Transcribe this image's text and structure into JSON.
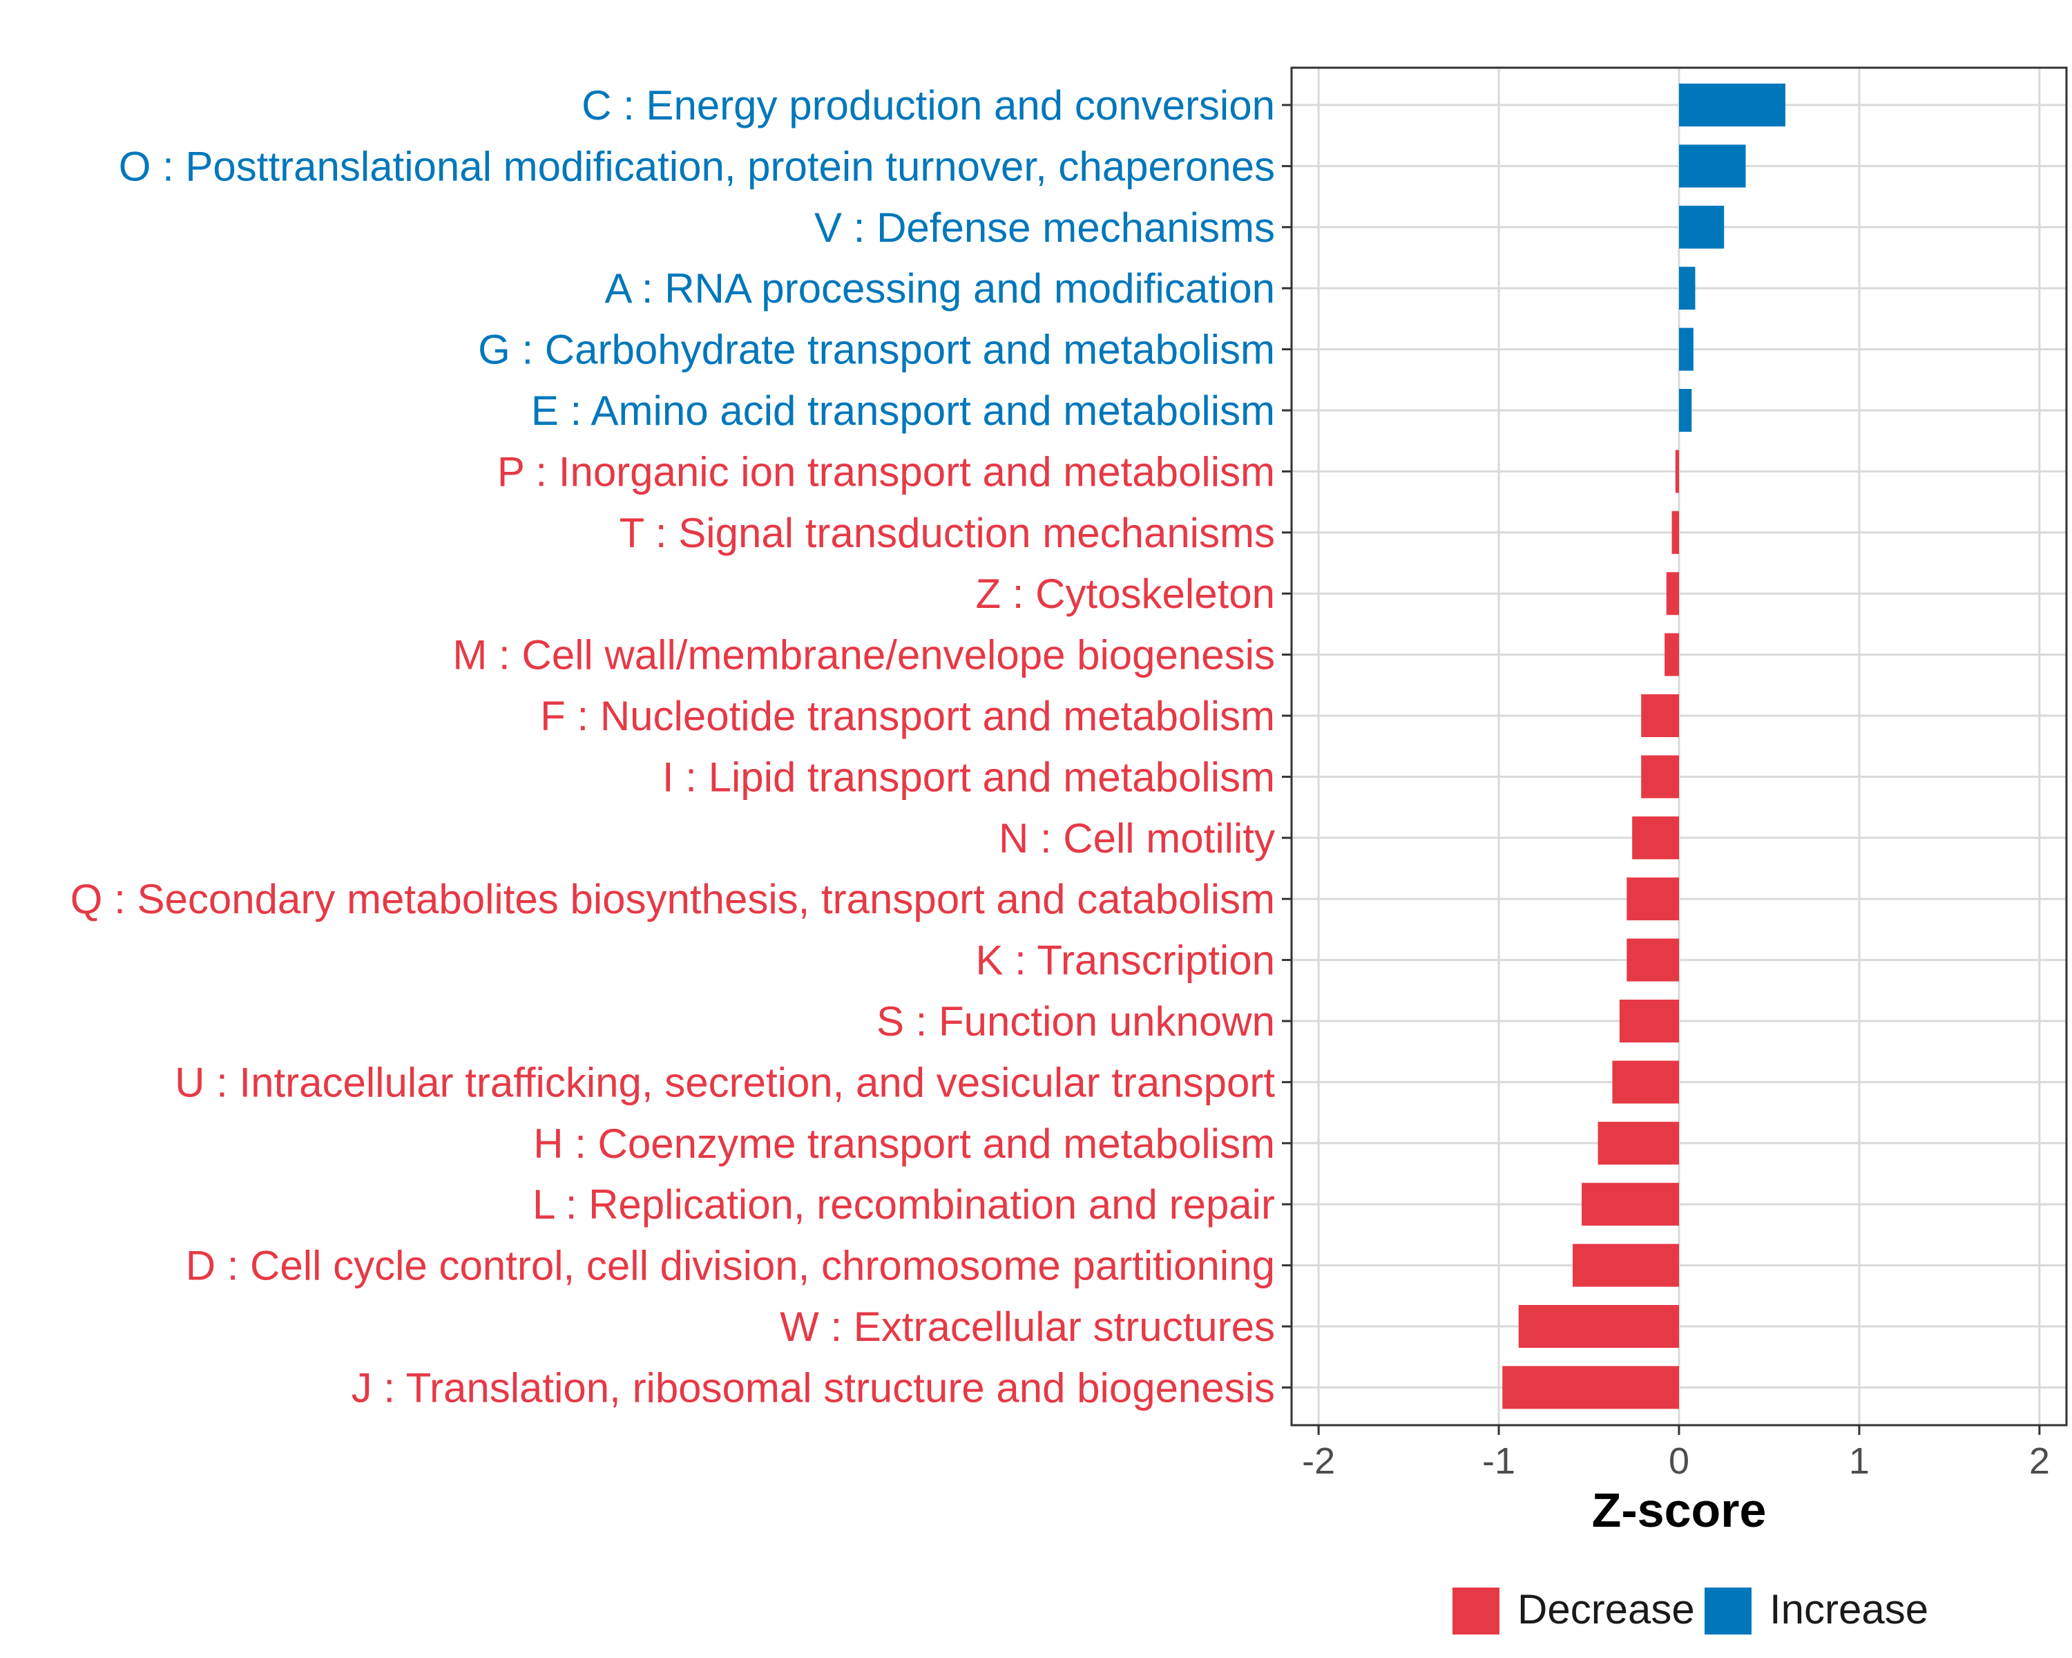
{
  "chart_data": {
    "type": "bar",
    "orientation": "horizontal",
    "xlabel": "Z-score",
    "ylabel": "",
    "xlim": [
      -2.15,
      2.15
    ],
    "x_ticks": [
      -2,
      -1,
      0,
      1,
      2
    ],
    "x_tick_labels": [
      "-2",
      "-1",
      "0",
      "1",
      "2"
    ],
    "grid": true,
    "categories": [
      "C : Energy production and conversion",
      "O : Posttranslational modification, protein turnover, chaperones",
      "V : Defense mechanisms",
      "A : RNA processing and modification",
      "G : Carbohydrate transport and metabolism",
      "E : Amino acid transport and metabolism",
      "P : Inorganic ion transport and metabolism",
      "T : Signal transduction mechanisms",
      "Z : Cytoskeleton",
      "M : Cell wall/membrane/envelope biogenesis",
      "F : Nucleotide transport and metabolism",
      "I : Lipid transport and metabolism",
      "N : Cell motility",
      "Q : Secondary metabolites biosynthesis, transport and catabolism",
      "K : Transcription",
      "S : Function unknown",
      "U : Intracellular trafficking, secretion, and vesicular transport",
      "H : Coenzyme transport and metabolism",
      "L : Replication, recombination and repair",
      "D : Cell cycle control, cell division, chromosome partitioning",
      "W : Extracellular structures",
      "J : Translation, ribosomal structure and biogenesis"
    ],
    "values": [
      0.59,
      0.37,
      0.25,
      0.09,
      0.08,
      0.07,
      -0.02,
      -0.04,
      -0.07,
      -0.08,
      -0.21,
      -0.21,
      -0.26,
      -0.29,
      -0.29,
      -0.33,
      -0.37,
      -0.45,
      -0.54,
      -0.59,
      -0.89,
      -0.98
    ],
    "groups": [
      "Increase",
      "Increase",
      "Increase",
      "Increase",
      "Increase",
      "Increase",
      "Decrease",
      "Decrease",
      "Decrease",
      "Decrease",
      "Decrease",
      "Decrease",
      "Decrease",
      "Decrease",
      "Decrease",
      "Decrease",
      "Decrease",
      "Decrease",
      "Decrease",
      "Decrease",
      "Decrease",
      "Decrease"
    ],
    "legend": {
      "position": "bottom",
      "entries": [
        {
          "label": "Decrease",
          "color": "#E63946"
        },
        {
          "label": "Increase",
          "color": "#0077BB"
        }
      ]
    }
  },
  "colors": {
    "decrease": "#E63946",
    "increase": "#0077BB",
    "grid": "#D9D9D9",
    "panel_border": "#333333"
  }
}
